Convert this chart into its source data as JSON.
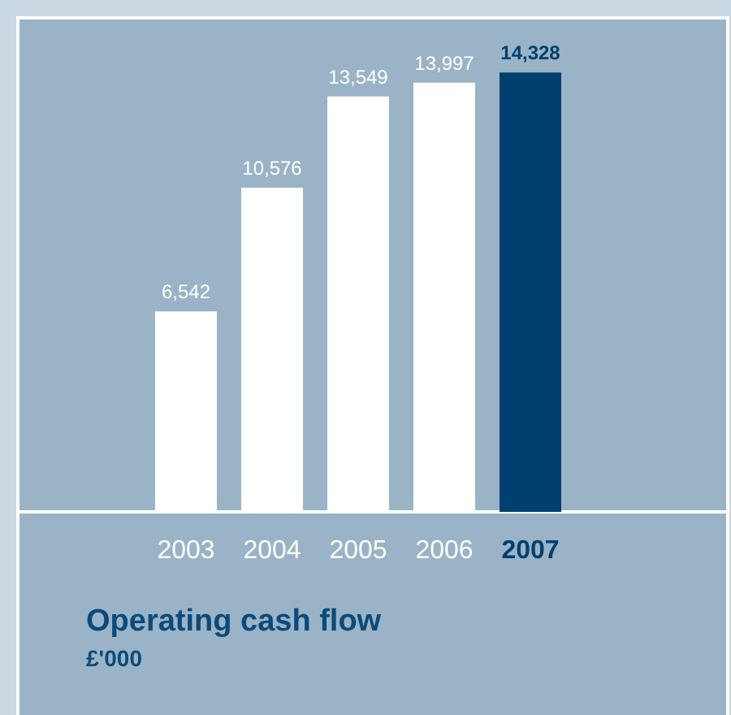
{
  "chart_data": {
    "type": "bar",
    "title": "Operating cash flow",
    "subtitle": "£'000",
    "categories": [
      "2003",
      "2004",
      "2005",
      "2006",
      "2007"
    ],
    "values": [
      6542,
      10576,
      13549,
      13997,
      14328
    ],
    "colors": [
      "#ffffff",
      "#ffffff",
      "#ffffff",
      "#ffffff",
      "#003f6e"
    ],
    "value_labels": [
      "6,542",
      "10,576",
      "13,549",
      "13,997",
      "14,328"
    ]
  }
}
